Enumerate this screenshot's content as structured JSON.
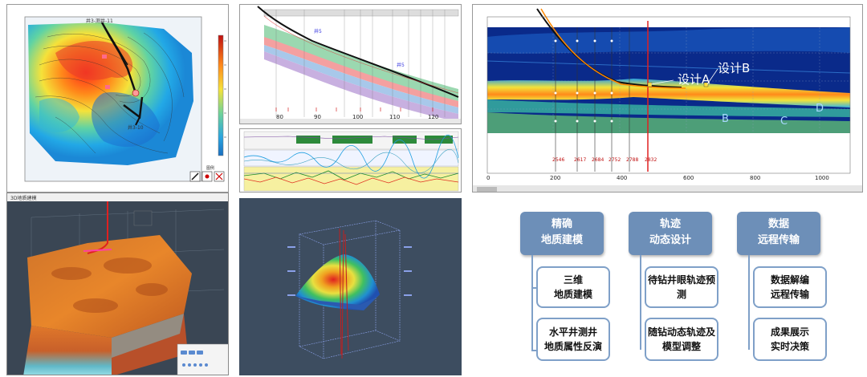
{
  "map_panel": {
    "well_top": "井3-测井-11",
    "well_bottom": "井3-10",
    "legend_label": "图例"
  },
  "section_panel": {
    "well_tags": [
      "井5",
      "井5"
    ],
    "x_ticks": [
      "80",
      "90",
      "100",
      "110",
      "120"
    ]
  },
  "design_panel": {
    "label_a": "设计A",
    "label_b": "设计B",
    "label_layer_b": "B",
    "label_layer_c": "C",
    "label_layer_d": "D",
    "x_ticks": [
      "0",
      "200",
      "400",
      "600",
      "800",
      "1000"
    ],
    "well_markers": [
      "2546",
      "2617",
      "2684",
      "2752",
      "2788",
      "2832"
    ]
  },
  "model3d_panel": {
    "window_title": "3D地质建模"
  },
  "workflow": {
    "columns": [
      {
        "header": "精确\n地质建模",
        "items": [
          "三维\n地质建模",
          "水平井测井\n地质属性反演"
        ]
      },
      {
        "header": "轨迹\n动态设计",
        "items": [
          "待钻井眼轨迹预\n测",
          "随钻动态轨迹及\n模型调整"
        ]
      },
      {
        "header": "数据\n远程传输",
        "items": [
          "数据解编\n远程传输",
          "成果展示\n实时决策"
        ]
      }
    ]
  },
  "colors": {
    "workflow_header": "#6d8fb8",
    "workflow_border": "#7fa0c8",
    "well_trajectory": "#111111",
    "design_line": "#ff8800",
    "cursor_line": "#e02020"
  }
}
